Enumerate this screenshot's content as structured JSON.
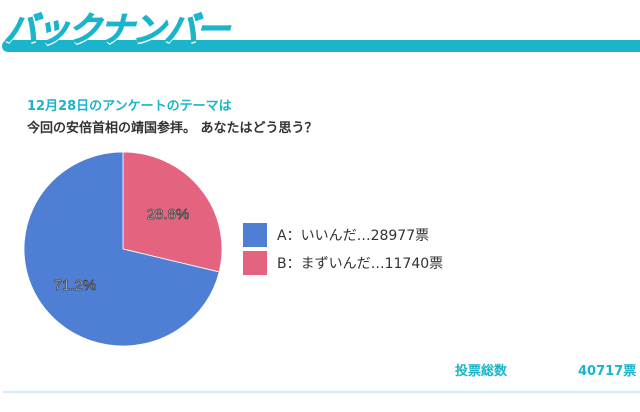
{
  "header": {
    "title": "バックナンバー"
  },
  "survey": {
    "subtitle": "12月28日のアンケートのテーマは",
    "question": "今回の安倍首相の靖国参拝。 あなたはどう思う？",
    "total_label": "投票総数",
    "total_value": "40717票"
  },
  "chart_data": {
    "type": "pie",
    "title": "",
    "slices": [
      {
        "label": "A：いいんだ…28977票",
        "name": "いいんだ",
        "votes": 28977,
        "percent": 71.2,
        "percent_label": "71.2%",
        "color": "#4f7fd4"
      },
      {
        "label": "B：まずいんだ…11740票",
        "name": "まずいんだ",
        "votes": 11740,
        "percent": 28.8,
        "percent_label": "28.8%",
        "color": "#e4637f"
      }
    ],
    "legend": "right"
  }
}
